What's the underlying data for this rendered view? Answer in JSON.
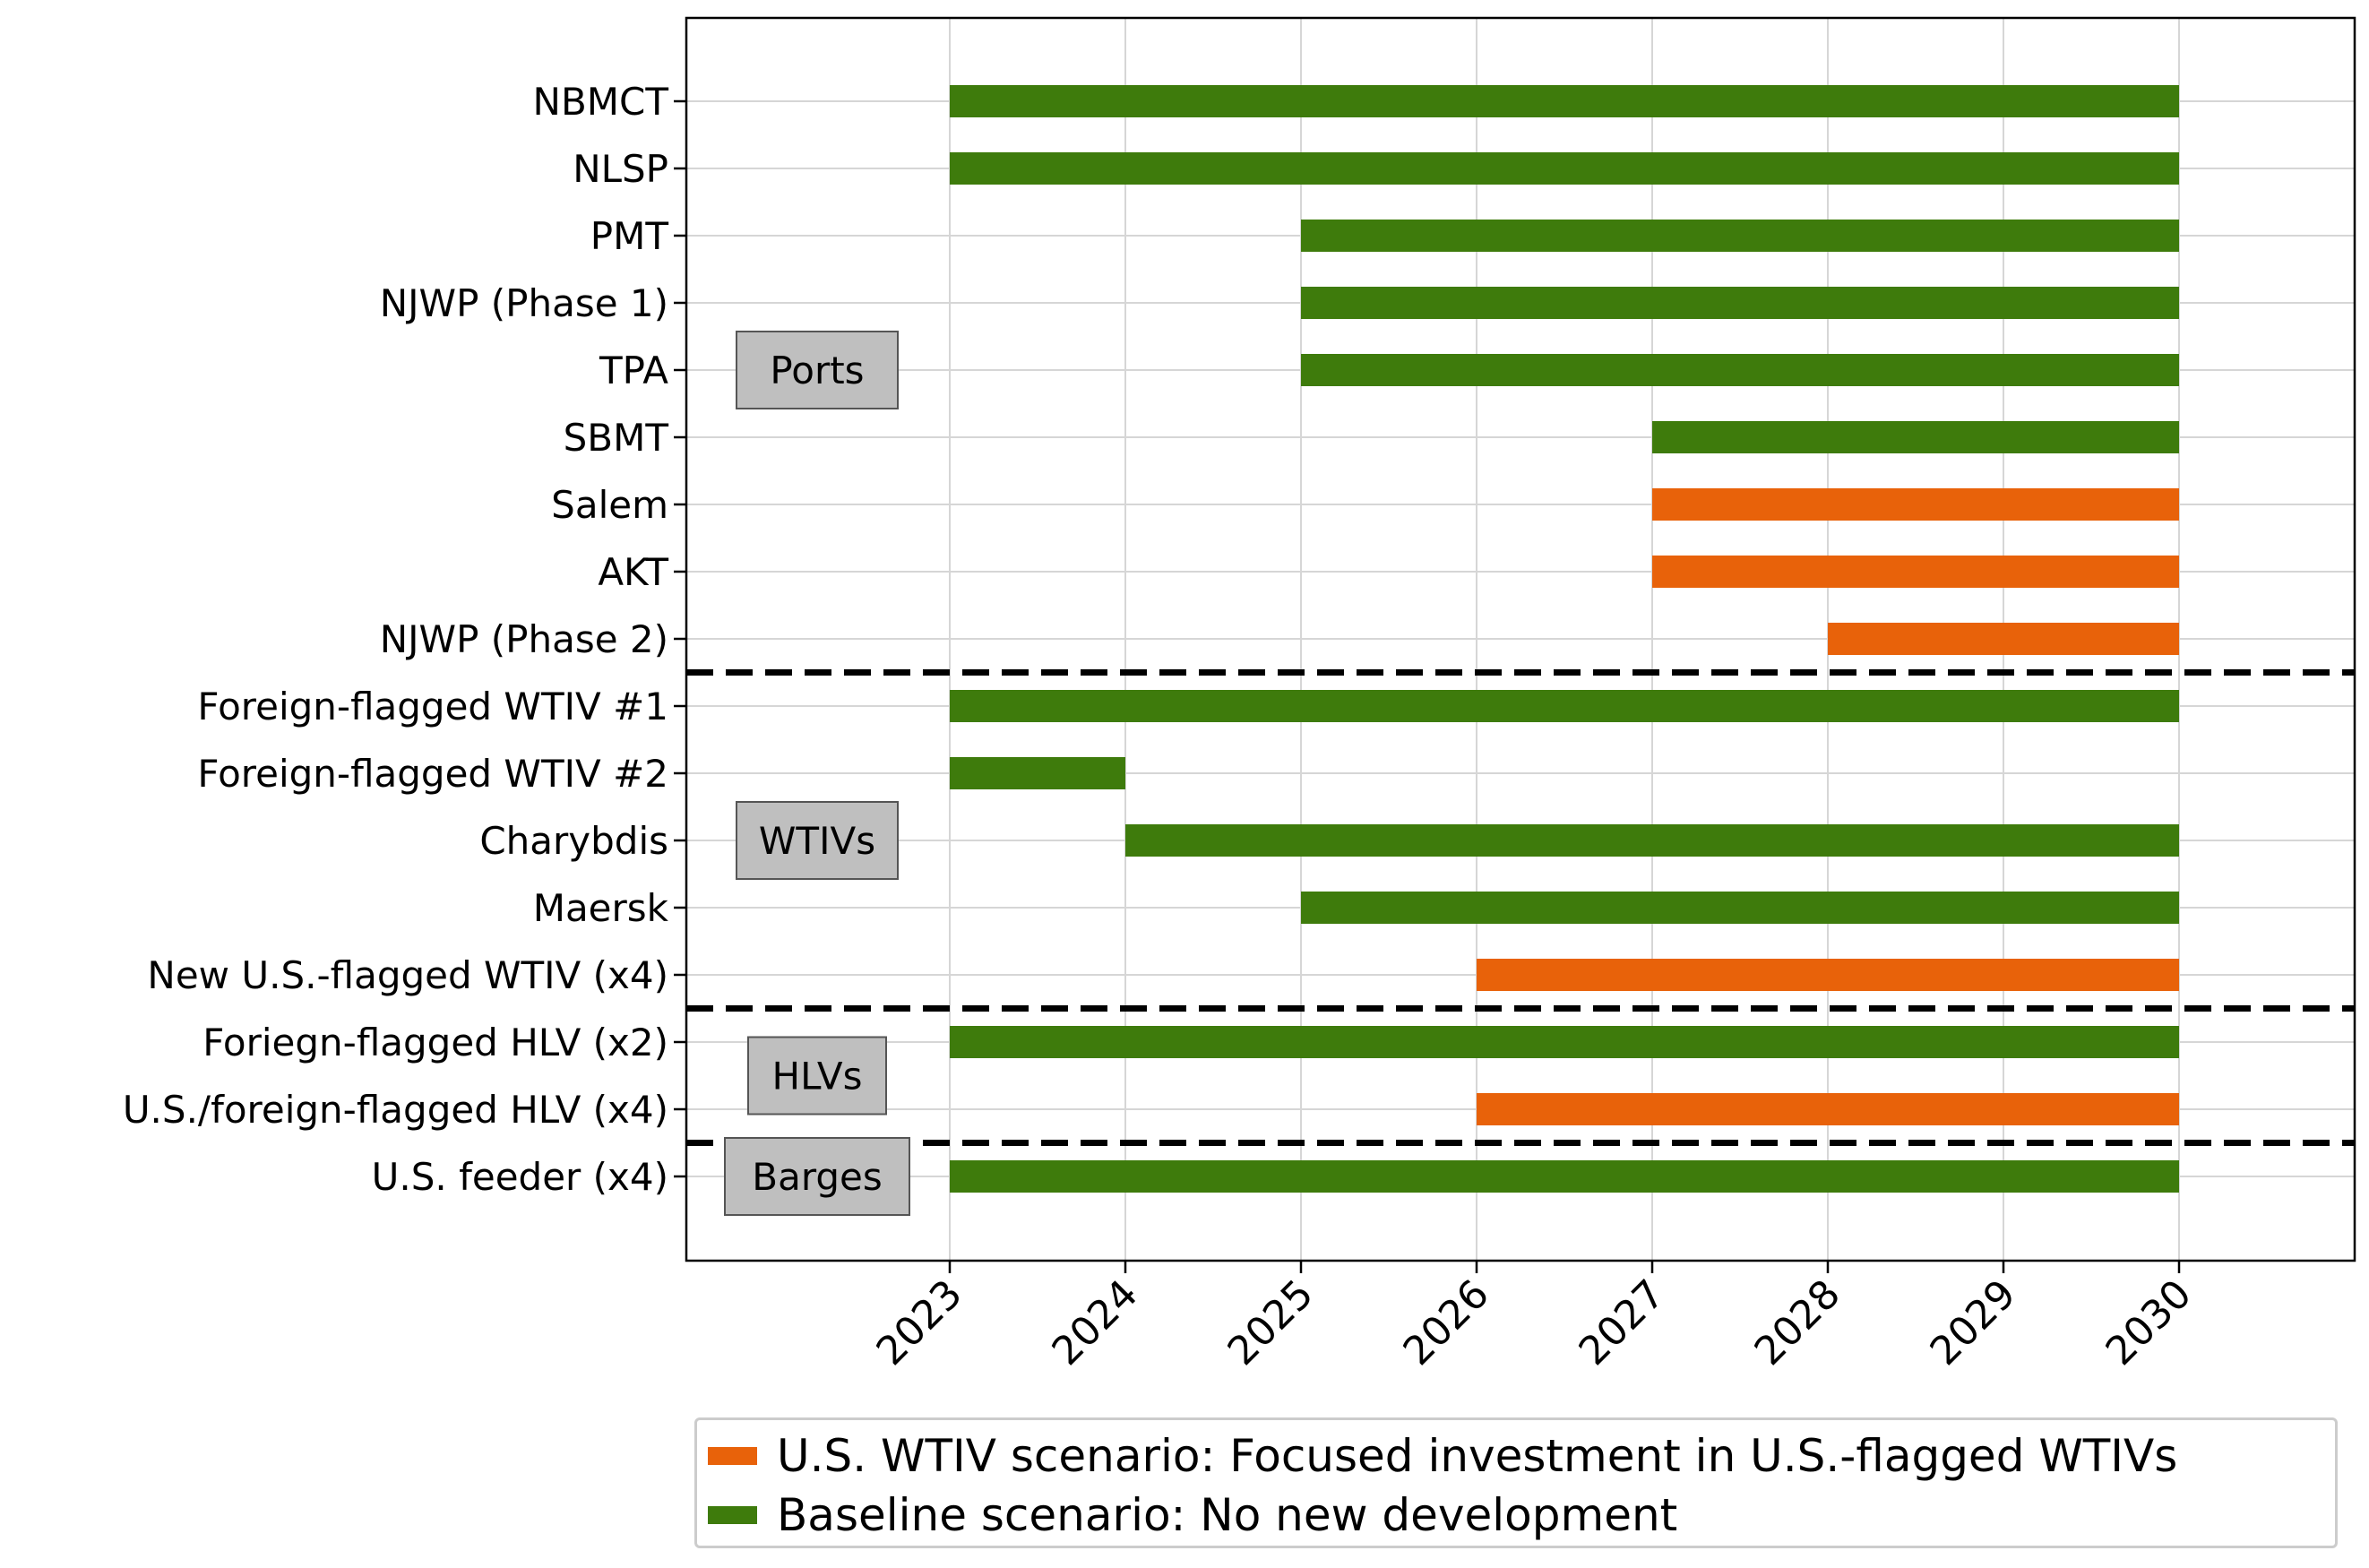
{
  "chart_data": {
    "type": "gantt",
    "colors": {
      "baseline": "#3e7b0c",
      "us_wtiv": "#e8620a"
    },
    "xticks": [
      2023,
      2024,
      2025,
      2026,
      2027,
      2028,
      2029,
      2030
    ],
    "xlim": [
      2021.5,
      2031.0
    ],
    "rows": [
      {
        "label": "NBMCT",
        "start": 2023,
        "end": 2030,
        "scenario": "baseline"
      },
      {
        "label": "NLSP",
        "start": 2023,
        "end": 2030,
        "scenario": "baseline"
      },
      {
        "label": "PMT",
        "start": 2025,
        "end": 2030,
        "scenario": "baseline"
      },
      {
        "label": "NJWP (Phase 1)",
        "start": 2025,
        "end": 2030,
        "scenario": "baseline"
      },
      {
        "label": "TPA",
        "start": 2025,
        "end": 2030,
        "scenario": "baseline"
      },
      {
        "label": "SBMT",
        "start": 2027,
        "end": 2030,
        "scenario": "baseline"
      },
      {
        "label": "Salem",
        "start": 2027,
        "end": 2030,
        "scenario": "us_wtiv"
      },
      {
        "label": "AKT",
        "start": 2027,
        "end": 2030,
        "scenario": "us_wtiv"
      },
      {
        "label": "NJWP (Phase 2)",
        "start": 2028,
        "end": 2030,
        "scenario": "us_wtiv"
      },
      {
        "label": "Foreign-flagged WTIV #1",
        "start": 2023,
        "end": 2030,
        "scenario": "baseline"
      },
      {
        "label": "Foreign-flagged WTIV #2",
        "start": 2023,
        "end": 2024,
        "scenario": "baseline"
      },
      {
        "label": "Charybdis",
        "start": 2024,
        "end": 2030,
        "scenario": "baseline"
      },
      {
        "label": "Maersk",
        "start": 2025,
        "end": 2030,
        "scenario": "baseline"
      },
      {
        "label": "New U.S.-flagged WTIV (x4)",
        "start": 2026,
        "end": 2030,
        "scenario": "us_wtiv"
      },
      {
        "label": "Foriegn-flagged HLV (x2)",
        "start": 2023,
        "end": 2030,
        "scenario": "baseline"
      },
      {
        "label": "U.S./foreign-flagged HLV (x4)",
        "start": 2026,
        "end": 2030,
        "scenario": "us_wtiv"
      },
      {
        "label": "U.S. feeder (x4)",
        "start": 2023,
        "end": 2030,
        "scenario": "baseline"
      }
    ],
    "groups": [
      {
        "label": "Ports",
        "row_index": 4,
        "rows": [
          0,
          8
        ]
      },
      {
        "label": "WTIVs",
        "row_index": 11,
        "rows": [
          9,
          13
        ]
      },
      {
        "label": "HLVs",
        "row_index": 14.5,
        "rows": [
          14,
          15
        ]
      },
      {
        "label": "Barges",
        "row_index": 16,
        "rows": [
          16,
          16
        ]
      }
    ],
    "separators_after_row": [
      8,
      13,
      15
    ],
    "legend": [
      {
        "label": "U.S. WTIV scenario: Focused investment in U.S.-flagged WTIVs",
        "scenario": "us_wtiv"
      },
      {
        "label": "Baseline scenario: No new development",
        "scenario": "baseline"
      }
    ],
    "grid": true
  }
}
